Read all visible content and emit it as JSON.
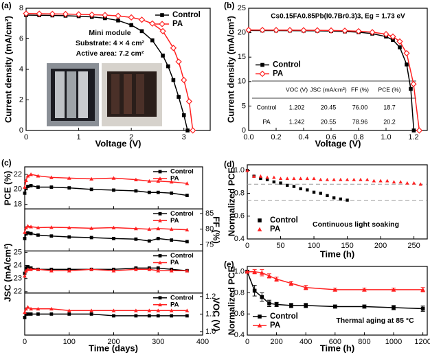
{
  "chart_data": [
    {
      "type": "line",
      "label": "(a)",
      "xlabel": "Voltage (V)",
      "ylabel": "Current density (mA/cm²)",
      "annotations": [
        "Mini module",
        "Substrate: 4 × 4 cm²",
        "Active area: 7.2 cm²"
      ],
      "xlim": [
        0,
        3.5
      ],
      "xticks": [
        0,
        1,
        2,
        3
      ],
      "ylim": [
        0,
        8
      ],
      "yticks": [
        0,
        2,
        4,
        6,
        8
      ],
      "legend": "upper right",
      "series": [
        {
          "name": "Control",
          "color": "#000000",
          "marker": "square",
          "x": [
            0,
            0.25,
            0.5,
            0.75,
            1,
            1.25,
            1.5,
            1.75,
            2,
            2.2,
            2.4,
            2.6,
            2.7,
            2.8,
            2.9,
            3.0,
            3.07
          ],
          "values": [
            7.55,
            7.54,
            7.53,
            7.51,
            7.48,
            7.43,
            7.35,
            7.2,
            6.9,
            6.5,
            5.9,
            4.9,
            4.2,
            3.3,
            2.2,
            1.0,
            0
          ]
        },
        {
          "name": "PA",
          "color": "#ff2020",
          "marker": "open-diamond",
          "x": [
            0,
            0.25,
            0.5,
            0.75,
            1,
            1.25,
            1.5,
            1.75,
            2,
            2.2,
            2.4,
            2.6,
            2.8,
            2.9,
            3.0,
            3.1,
            3.17
          ],
          "values": [
            7.65,
            7.64,
            7.63,
            7.62,
            7.6,
            7.58,
            7.55,
            7.5,
            7.4,
            7.25,
            7.0,
            6.5,
            5.4,
            4.5,
            3.3,
            1.9,
            0
          ]
        }
      ]
    },
    {
      "type": "line",
      "label": "(b)",
      "title": "Cs0.15FA0.85Pb(I0.7Br0.3)3, Eg = 1.73 eV",
      "xlabel": "Voltage (V)",
      "ylabel": "Current density (mA/cm²)",
      "xlim": [
        0,
        1.3
      ],
      "xticks": [
        {
          "value": 0,
          "label": "0.0"
        },
        0.2,
        0.4,
        0.6,
        0.8,
        {
          "value": 1,
          "label": "1.0"
        },
        1.2
      ],
      "ylim": [
        0,
        25
      ],
      "yticks": [
        0,
        5,
        10,
        15,
        20,
        25
      ],
      "legend": "center left",
      "table": {
        "columns": [
          "VOC (V)",
          "JSC (mA/cm²)",
          "FF (%)",
          "PCE (%)"
        ],
        "rows": [
          [
            "Control",
            "1.202",
            "20.45",
            "76.00",
            "18.7"
          ],
          [
            "PA",
            "1.242",
            "20.55",
            "78.96",
            "20.2"
          ]
        ]
      },
      "series": [
        {
          "name": "Control",
          "color": "#000000",
          "marker": "square",
          "x": [
            0,
            0.1,
            0.2,
            0.3,
            0.4,
            0.5,
            0.6,
            0.7,
            0.8,
            0.9,
            1.0,
            1.05,
            1.1,
            1.15,
            1.18,
            1.202
          ],
          "values": [
            20.45,
            20.44,
            20.43,
            20.42,
            20.4,
            20.38,
            20.33,
            20.25,
            20.1,
            19.8,
            19.2,
            18.5,
            17.0,
            13.5,
            8.5,
            0
          ]
        },
        {
          "name": "PA",
          "color": "#ff2020",
          "marker": "open-diamond",
          "x": [
            0,
            0.1,
            0.2,
            0.3,
            0.4,
            0.5,
            0.6,
            0.7,
            0.8,
            0.9,
            1.0,
            1.05,
            1.1,
            1.15,
            1.2,
            1.242
          ],
          "values": [
            20.55,
            20.54,
            20.53,
            20.52,
            20.5,
            20.48,
            20.45,
            20.4,
            20.3,
            20.1,
            19.7,
            19.2,
            18.2,
            15.8,
            9.5,
            0
          ]
        }
      ]
    },
    {
      "type": "line",
      "label": "(c)",
      "xlabel": "Time (days)",
      "x": [
        0,
        3,
        7,
        14,
        30,
        60,
        100,
        150,
        200,
        250,
        280,
        300,
        330,
        365
      ],
      "xlim": [
        0,
        400
      ],
      "xticks": [
        0,
        100,
        200,
        300,
        400
      ],
      "panels": [
        {
          "ylabel": "PCE (%)",
          "axis_side": "left",
          "ylim": [
            17.4,
            23
          ],
          "yticks": [
            18,
            20,
            22
          ],
          "legend": "upper right",
          "series": [
            {
              "name": "Control",
              "color": "#000000",
              "marker": "square",
              "values": [
                19.5,
                20.1,
                20.4,
                20.5,
                20.3,
                20.3,
                20.2,
                20.0,
                19.9,
                19.8,
                19.6,
                19.6,
                19.5,
                19.2
              ]
            },
            {
              "name": "PA",
              "color": "#ff2020",
              "marker": "triangle",
              "values": [
                20.3,
                21.2,
                21.8,
                22.0,
                21.8,
                21.6,
                21.5,
                21.4,
                21.5,
                21.3,
                21.1,
                21.1,
                21.0,
                20.8
              ]
            }
          ]
        },
        {
          "ylabel": "FF (%)",
          "axis_side": "right",
          "ylim": [
            73,
            86.5
          ],
          "yticks": [
            75,
            80,
            85
          ],
          "legend": "upper right",
          "series": [
            {
              "name": "Control",
              "color": "#000000",
              "marker": "square",
              "values": [
                77.0,
                78.5,
                78.8,
                78.6,
                78.1,
                77.8,
                77.5,
                77.3,
                77.0,
                76.8,
                76.2,
                77.0,
                76.5,
                76.0
              ]
            },
            {
              "name": "PA",
              "color": "#ff2020",
              "marker": "triangle",
              "values": [
                79.0,
                80.5,
                81.0,
                80.8,
                80.5,
                80.6,
                80.5,
                80.3,
                80.5,
                80.2,
                80.0,
                80.2,
                80.0,
                79.8
              ]
            }
          ]
        },
        {
          "ylabel": "JSC (mA/cm²)",
          "axis_side": "left",
          "ylim": [
            21.9,
            25.1
          ],
          "yticks": [
            22,
            23,
            24,
            25
          ],
          "legend": "upper right",
          "series": [
            {
              "name": "Control",
              "color": "#000000",
              "marker": "square",
              "values": [
                23.4,
                23.8,
                23.9,
                23.8,
                23.7,
                23.7,
                23.7,
                23.7,
                23.7,
                23.8,
                23.8,
                23.8,
                23.7,
                23.6
              ]
            },
            {
              "name": "PA",
              "color": "#ff2020",
              "marker": "triangle",
              "values": [
                23.2,
                23.6,
                23.7,
                23.7,
                23.7,
                23.6,
                23.6,
                23.7,
                23.6,
                23.7,
                23.7,
                23.6,
                23.6,
                23.6
              ]
            }
          ]
        },
        {
          "ylabel": "VOC (V)",
          "axis_side": "right",
          "ylim": [
            0.98,
            1.22
          ],
          "yticks": [
            {
              "value": 1,
              "label": "1.0"
            },
            1.1,
            1.2
          ],
          "legend": "upper right",
          "series": [
            {
              "name": "Control",
              "color": "#000000",
              "marker": "square",
              "values": [
                1.08,
                1.1,
                1.1,
                1.1,
                1.1,
                1.1,
                1.1,
                1.1,
                1.09,
                1.09,
                1.09,
                1.09,
                1.09,
                1.09
              ]
            },
            {
              "name": "PA",
              "color": "#ff2020",
              "marker": "triangle",
              "values": [
                1.11,
                1.13,
                1.14,
                1.13,
                1.13,
                1.13,
                1.12,
                1.12,
                1.12,
                1.12,
                1.12,
                1.12,
                1.12,
                1.12
              ]
            }
          ]
        }
      ]
    },
    {
      "type": "scatter",
      "label": "(d)",
      "xlabel": "Time (h)",
      "ylabel": "Normalized PCE",
      "annotations": [
        "Continuous light soaking"
      ],
      "xlim": [
        0,
        270
      ],
      "xticks": [
        0,
        50,
        100,
        150,
        200,
        250
      ],
      "ylim": [
        0.4,
        1.05
      ],
      "yticks": [
        0.4,
        0.6,
        0.8,
        {
          "value": 1,
          "label": "1.0"
        }
      ],
      "legend": "lower left",
      "reference_lines": [
        0.88,
        0.74
      ],
      "series": [
        {
          "name": "Control",
          "color": "#000000",
          "marker": "square",
          "x": [
            0,
            10,
            20,
            30,
            40,
            50,
            60,
            70,
            80,
            90,
            100,
            110,
            120,
            130,
            140,
            150
          ],
          "values": [
            1.0,
            0.95,
            0.93,
            0.92,
            0.9,
            0.89,
            0.87,
            0.86,
            0.84,
            0.83,
            0.81,
            0.8,
            0.78,
            0.76,
            0.75,
            0.74
          ]
        },
        {
          "name": "PA",
          "color": "#ff2020",
          "marker": "triangle",
          "x": [
            0,
            10,
            20,
            30,
            40,
            50,
            60,
            70,
            80,
            90,
            100,
            110,
            120,
            130,
            140,
            150,
            160,
            170,
            180,
            190,
            200,
            210,
            220,
            230,
            240,
            250,
            260
          ],
          "values": [
            1.0,
            0.95,
            0.95,
            0.94,
            0.94,
            0.93,
            0.93,
            0.93,
            0.93,
            0.93,
            0.93,
            0.92,
            0.92,
            0.92,
            0.92,
            0.92,
            0.92,
            0.92,
            0.92,
            0.91,
            0.91,
            0.91,
            0.9,
            0.9,
            0.89,
            0.89,
            0.88
          ]
        }
      ]
    },
    {
      "type": "line",
      "label": "(e)",
      "xlabel": "Time (h)",
      "ylabel": "Normalized PCE",
      "annotations": [
        "Thermal aging at 85 °C"
      ],
      "xlim": [
        0,
        1230
      ],
      "xticks": [
        0,
        200,
        400,
        600,
        800,
        1000,
        1200
      ],
      "ylim": [
        0.4,
        1.05
      ],
      "yticks": [
        0.4,
        0.6,
        0.8,
        {
          "value": 1,
          "label": "1.0"
        }
      ],
      "legend": "lower left",
      "x": [
        0,
        50,
        100,
        150,
        200,
        300,
        400,
        600,
        800,
        1000,
        1200
      ],
      "series": [
        {
          "name": "Control",
          "color": "#000000",
          "marker": "square",
          "values": [
            1.0,
            0.82,
            0.76,
            0.7,
            0.69,
            0.68,
            0.68,
            0.67,
            0.67,
            0.66,
            0.65
          ],
          "errors": [
            0,
            0.05,
            0.04,
            0.03,
            0.02,
            0.02,
            0.02,
            0.015,
            0.015,
            0.02,
            0.025
          ]
        },
        {
          "name": "PA",
          "color": "#ff2020",
          "marker": "triangle",
          "values": [
            1.0,
            1.0,
            0.99,
            0.96,
            0.93,
            0.89,
            0.85,
            0.83,
            0.83,
            0.83,
            0.83
          ],
          "errors": [
            0,
            0.02,
            0.03,
            0.02,
            0.02,
            0.02,
            0.02,
            0.015,
            0.015,
            0.015,
            0.02
          ]
        }
      ]
    }
  ]
}
